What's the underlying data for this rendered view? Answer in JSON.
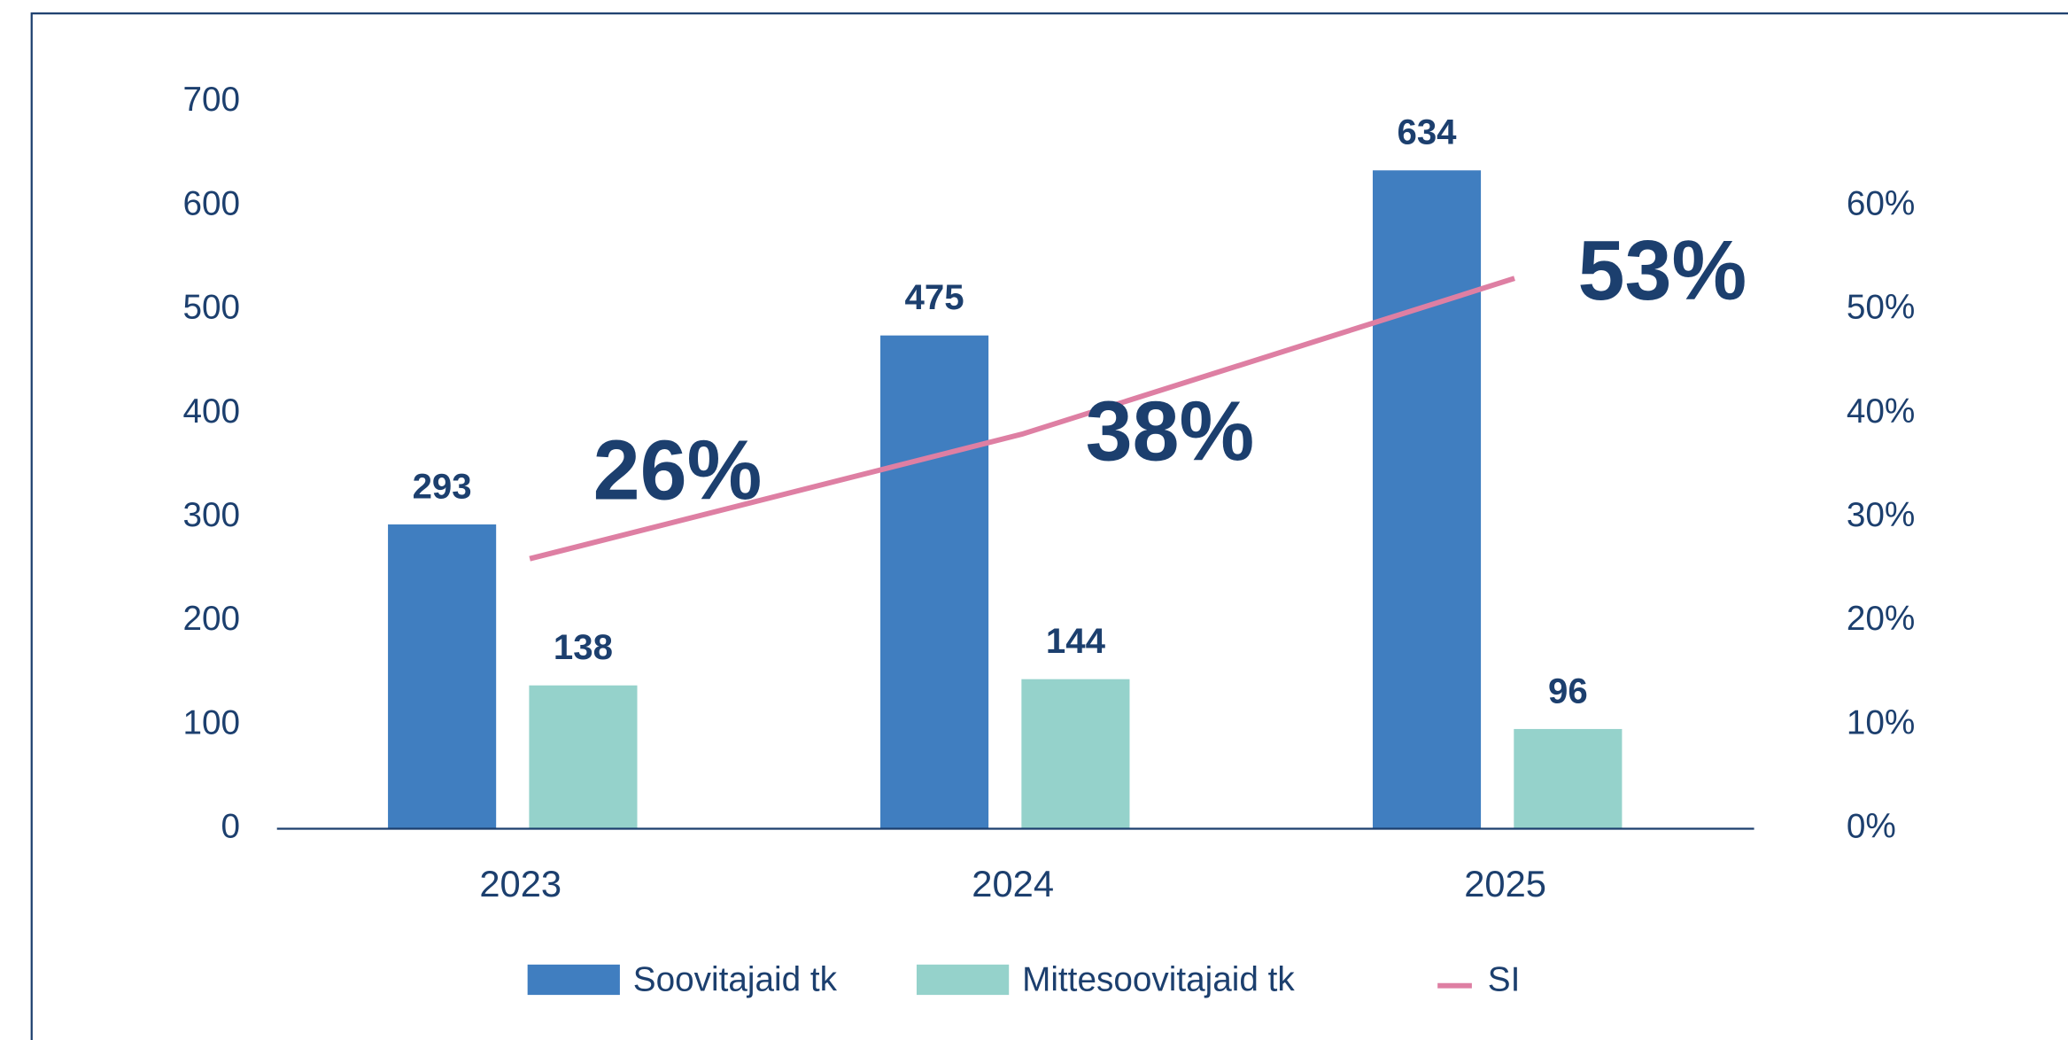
{
  "chart_data": {
    "type": "bar",
    "categories": [
      "2023",
      "2024",
      "2025"
    ],
    "series": [
      {
        "name": "Soovitajaid tk",
        "color": "#407ec0",
        "values": [
          293,
          475,
          634
        ]
      },
      {
        "name": "Mittesoovitajaid tk",
        "color": "#95d2cb",
        "values": [
          138,
          144,
          96
        ]
      },
      {
        "name": "SI",
        "type": "line",
        "axis": "y2",
        "color": "#de7fa3",
        "values": [
          26,
          38,
          53
        ],
        "value_labels": [
          "26%",
          "38%",
          "53%"
        ]
      }
    ],
    "ylim": [
      0,
      700
    ],
    "yticks": [
      0,
      100,
      200,
      300,
      400,
      500,
      600,
      700
    ],
    "y2lim": [
      0,
      70
    ],
    "y2ticks": [
      {
        "value": 0,
        "label": "0%"
      },
      {
        "value": 10,
        "label": "10%"
      },
      {
        "value": 20,
        "label": "20%"
      },
      {
        "value": 30,
        "label": "30%"
      },
      {
        "value": 40,
        "label": "40%"
      },
      {
        "value": 50,
        "label": "50%"
      },
      {
        "value": 60,
        "label": "60%"
      }
    ],
    "legend": "bottom"
  }
}
